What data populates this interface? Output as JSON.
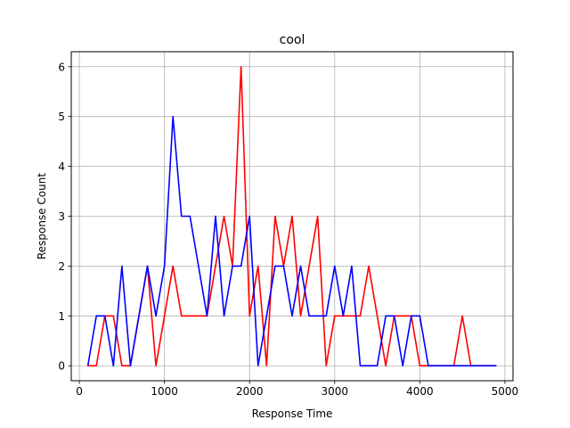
{
  "chart_data": {
    "type": "line",
    "title": "cool",
    "xlabel": "Response Time",
    "ylabel": "Response Count",
    "xlim": [
      -95,
      5095
    ],
    "ylim": [
      -0.3,
      6.3
    ],
    "xticks": [
      0,
      1000,
      2000,
      3000,
      4000,
      5000
    ],
    "xtick_labels": [
      "0",
      "1000",
      "2000",
      "3000",
      "4000",
      "5000"
    ],
    "yticks": [
      0,
      1,
      2,
      3,
      4,
      5,
      6
    ],
    "ytick_labels": [
      "0",
      "1",
      "2",
      "3",
      "4",
      "5",
      "6"
    ],
    "grid": true,
    "legend": "none",
    "x": [
      100,
      200,
      300,
      400,
      500,
      600,
      700,
      800,
      900,
      1000,
      1100,
      1200,
      1300,
      1400,
      1500,
      1600,
      1700,
      1800,
      1900,
      2000,
      2100,
      2200,
      2300,
      2400,
      2500,
      2600,
      2700,
      2800,
      2900,
      3000,
      3100,
      3200,
      3300,
      3400,
      3500,
      3600,
      3700,
      3800,
      3900,
      4000,
      4100,
      4200,
      4300,
      4400,
      4500,
      4600,
      4700,
      4800,
      4900
    ],
    "series": [
      {
        "color": "#ff0000",
        "values": [
          0,
          0,
          1,
          1,
          0,
          0,
          1,
          2,
          0,
          1,
          2,
          1,
          1,
          1,
          1,
          2,
          3,
          2,
          6,
          1,
          2,
          0,
          3,
          2,
          3,
          1,
          2,
          3,
          0,
          1,
          1,
          1,
          1,
          2,
          1,
          0,
          1,
          1,
          1,
          0,
          0,
          0,
          0,
          0,
          1,
          0,
          0,
          0,
          0
        ]
      },
      {
        "color": "#0000ff",
        "values": [
          0,
          1,
          1,
          0,
          2,
          0,
          1,
          2,
          1,
          2,
          5,
          3,
          3,
          2,
          1,
          3,
          1,
          2,
          2,
          3,
          0,
          1,
          2,
          2,
          1,
          2,
          1,
          1,
          1,
          2,
          1,
          2,
          0,
          0,
          0,
          1,
          1,
          0,
          1,
          1,
          0,
          0,
          0,
          0,
          0,
          0,
          0,
          0,
          0
        ]
      }
    ]
  }
}
